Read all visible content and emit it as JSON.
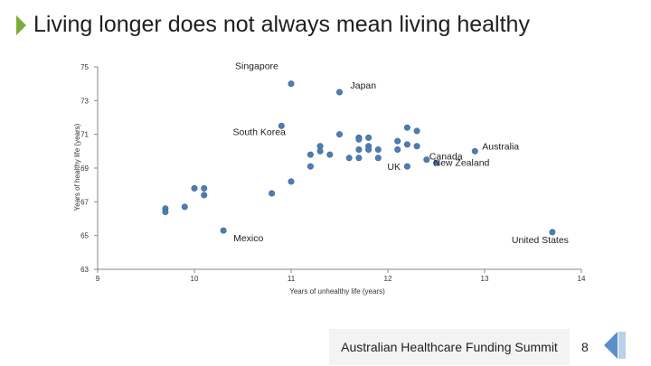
{
  "header": {
    "title": "Living longer does not always mean living healthy"
  },
  "footer": {
    "text": "Australian Healthcare Funding Summit",
    "page_number": "8"
  },
  "colors": {
    "accent_arrow": "#7dac3a",
    "marker": "#4f7db3",
    "nav": "#5b8fc9"
  },
  "icons": {
    "title_marker": "green-arrow-icon",
    "nav": "previous-arrow-icon"
  },
  "chart_data": {
    "type": "scatter",
    "xlabel": "Years of unhealthy life (years)",
    "ylabel": "Years of healthy life (years)",
    "xlim": [
      9,
      14
    ],
    "ylim": [
      63,
      75
    ],
    "x_ticks": [
      "9",
      "10",
      "11",
      "12",
      "13",
      "14"
    ],
    "y_ticks": [
      "63",
      "65",
      "67",
      "69",
      "71",
      "73",
      "75"
    ],
    "grid": false,
    "points": [
      {
        "x": 9.7,
        "y": 66.6
      },
      {
        "x": 9.7,
        "y": 66.4
      },
      {
        "x": 9.9,
        "y": 66.7
      },
      {
        "x": 10.0,
        "y": 67.8
      },
      {
        "x": 10.1,
        "y": 67.8
      },
      {
        "x": 10.1,
        "y": 67.4
      },
      {
        "x": 10.3,
        "y": 65.3,
        "label": "Mexico"
      },
      {
        "x": 10.8,
        "y": 67.5
      },
      {
        "x": 10.9,
        "y": 71.5
      },
      {
        "x": 11.0,
        "y": 74.0,
        "label": "Singapore"
      },
      {
        "x": 11.0,
        "y": 68.2
      },
      {
        "x": 11.2,
        "y": 69.1
      },
      {
        "x": 11.2,
        "y": 69.8
      },
      {
        "x": 11.3,
        "y": 70.3
      },
      {
        "x": 11.3,
        "y": 70.0
      },
      {
        "x": 11.4,
        "y": 69.8
      },
      {
        "x": 11.5,
        "y": 71.0,
        "label": "South Korea"
      },
      {
        "x": 11.5,
        "y": 73.5,
        "label": "Japan"
      },
      {
        "x": 11.6,
        "y": 69.6
      },
      {
        "x": 11.7,
        "y": 70.8
      },
      {
        "x": 11.7,
        "y": 70.7
      },
      {
        "x": 11.7,
        "y": 70.1
      },
      {
        "x": 11.7,
        "y": 69.6
      },
      {
        "x": 11.8,
        "y": 70.3
      },
      {
        "x": 11.8,
        "y": 70.1
      },
      {
        "x": 11.8,
        "y": 70.8
      },
      {
        "x": 11.9,
        "y": 70.1
      },
      {
        "x": 11.9,
        "y": 69.6
      },
      {
        "x": 12.1,
        "y": 70.6
      },
      {
        "x": 12.1,
        "y": 70.1
      },
      {
        "x": 12.2,
        "y": 71.4
      },
      {
        "x": 12.2,
        "y": 70.4
      },
      {
        "x": 12.3,
        "y": 71.2
      },
      {
        "x": 12.3,
        "y": 70.3
      },
      {
        "x": 12.2,
        "y": 69.1,
        "label": "UK"
      },
      {
        "x": 12.4,
        "y": 69.5,
        "label": "Canada"
      },
      {
        "x": 12.5,
        "y": 69.3,
        "label": "New Zealand"
      },
      {
        "x": 12.9,
        "y": 70.0,
        "label": "Australia"
      },
      {
        "x": 13.7,
        "y": 65.2,
        "label": "United States"
      }
    ]
  }
}
